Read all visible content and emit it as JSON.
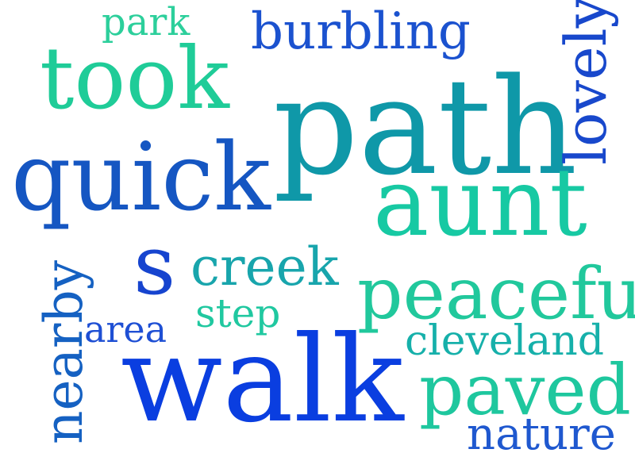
{
  "words": {
    "park": {
      "text": "park",
      "color": "#2ccf9b"
    },
    "burbling": {
      "text": "burbling",
      "color": "#1b52cf"
    },
    "took": {
      "text": "took",
      "color": "#1fcc98"
    },
    "path": {
      "text": "path",
      "color": "#0f98a8"
    },
    "lovely": {
      "text": "lovely",
      "color": "#1848cc"
    },
    "quick": {
      "text": "quick",
      "color": "#1556c2"
    },
    "aunt": {
      "text": "aunt",
      "color": "#17c9a3"
    },
    "nearby": {
      "text": "nearby",
      "color": "#1561c2"
    },
    "s": {
      "text": "s",
      "color": "#1644cf"
    },
    "creek": {
      "text": "creek",
      "color": "#18a5ac"
    },
    "peaceful": {
      "text": "peaceful",
      "color": "#21c89c"
    },
    "step": {
      "text": "step",
      "color": "#20c8a0"
    },
    "area": {
      "text": "area",
      "color": "#1e4fd4"
    },
    "cleveland": {
      "text": "cleveland",
      "color": "#16b0aa"
    },
    "walk": {
      "text": "walk",
      "color": "#0a3ee0"
    },
    "paved": {
      "text": "paved",
      "color": "#1ec79e"
    },
    "nature": {
      "text": "nature",
      "color": "#1f58cf"
    }
  }
}
